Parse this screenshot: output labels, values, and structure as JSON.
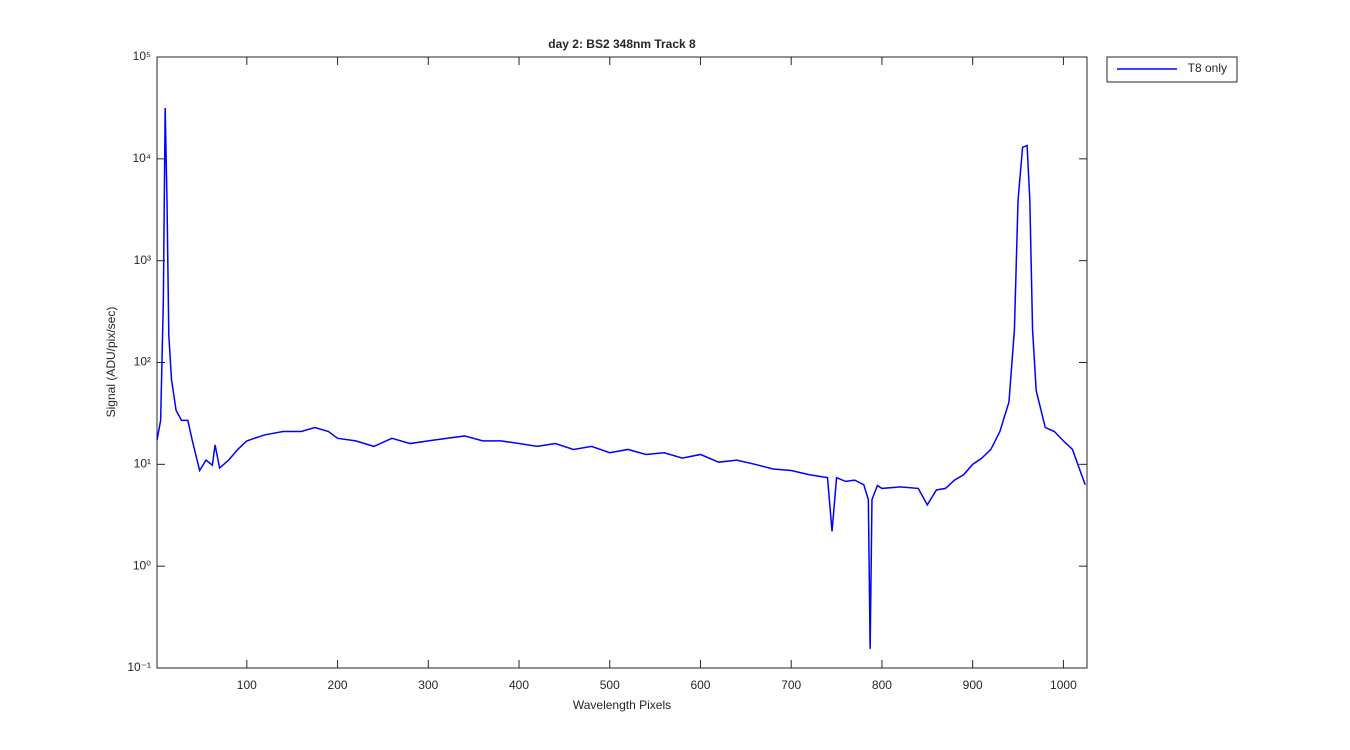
{
  "chart_data": {
    "type": "line",
    "title": "day 2: BS2  348nm  Track 8",
    "x_label": "Wavelength Pixels",
    "y_label": "Signal (ADU/pix/sec)",
    "x": [
      1,
      5,
      8,
      10,
      12,
      14,
      17,
      22,
      28,
      35,
      40,
      48,
      55,
      62,
      65,
      70,
      80,
      90,
      100,
      120,
      140,
      160,
      175,
      190,
      200,
      220,
      240,
      260,
      280,
      300,
      320,
      340,
      360,
      380,
      400,
      420,
      440,
      460,
      480,
      500,
      520,
      540,
      560,
      580,
      600,
      620,
      640,
      660,
      680,
      700,
      720,
      740,
      745,
      750,
      760,
      770,
      780,
      785,
      787,
      789,
      795,
      800,
      820,
      840,
      850,
      860,
      870,
      880,
      890,
      900,
      910,
      920,
      930,
      940,
      946,
      950,
      955,
      960,
      963,
      966,
      970,
      980,
      990,
      1000,
      1010,
      1020,
      1024
    ],
    "series": [
      {
        "name": "T8 only",
        "color": "#0000ff",
        "values": [
          17.3,
          27,
          410,
          31600,
          3960,
          185,
          68,
          34,
          27,
          27,
          17,
          8.7,
          11,
          9.8,
          15.5,
          9.2,
          11,
          14,
          17,
          19.5,
          21,
          21,
          23,
          21,
          18,
          17,
          15,
          18,
          16,
          17,
          18,
          19,
          17,
          17,
          16,
          15,
          16,
          14,
          15,
          13,
          14,
          12.5,
          13,
          11.5,
          12.5,
          10.5,
          11,
          10,
          9,
          8.7,
          7.9,
          7.4,
          2.2,
          7.4,
          6.8,
          7,
          6.3,
          4.5,
          0.154,
          4.5,
          6.2,
          5.8,
          6,
          5.8,
          4,
          5.6,
          5.8,
          7,
          7.9,
          10,
          11.5,
          14,
          21,
          41,
          210,
          3900,
          13000,
          13500,
          3900,
          210,
          53,
          23,
          21,
          17,
          14,
          7.9,
          6.3
        ]
      }
    ],
    "xlim": [
      1,
      1026
    ],
    "xticks": [
      100,
      200,
      300,
      400,
      500,
      600,
      700,
      800,
      900,
      1000
    ],
    "ylim": [
      0.1,
      100000
    ],
    "yticks": [
      {
        "value": 0.1,
        "label": "10⁻¹"
      },
      {
        "value": 1,
        "label": "10⁰"
      },
      {
        "value": 10,
        "label": "10¹"
      },
      {
        "value": 100,
        "label": "10²"
      },
      {
        "value": 1000,
        "label": "10³"
      },
      {
        "value": 10000,
        "label": "10⁴"
      },
      {
        "value": 100000,
        "label": "10⁵"
      }
    ],
    "log_y": true,
    "legend": "outside-top-right"
  }
}
